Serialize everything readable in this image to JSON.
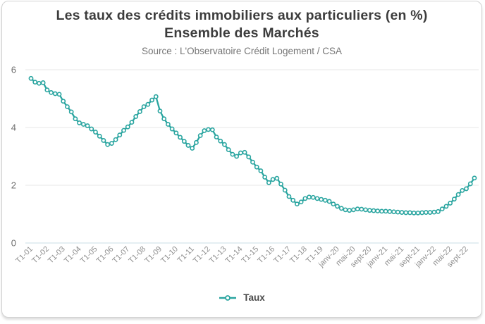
{
  "header": {
    "title_line1": "Les taux des crédits immobiliers aux particuliers (en %)",
    "title_line2": "Ensemble des Marchés",
    "source": "Source : L'Observatoire Crédit Logement / CSA"
  },
  "legend": {
    "label": "Taux"
  },
  "colors": {
    "line": "#2aa5a0",
    "marker_fill": "#ffffff",
    "grid": "#e7e7e7",
    "zero_line": "#c9dfe6",
    "ytick_text": "#6e6e6e",
    "xtick_text": "#8f8f8f"
  },
  "chart_data": {
    "type": "line",
    "title": "Les taux des crédits immobiliers aux particuliers (en %) Ensemble des Marchés",
    "subtitle": "Source : L'Observatoire Crédit Logement / CSA",
    "xlabel": "",
    "ylabel": "",
    "ylim": [
      0,
      6
    ],
    "yticks": [
      0,
      2,
      4,
      6
    ],
    "grid": "horizontal",
    "legend_position": "bottom",
    "x_tick_every": 4,
    "visible_x_tick_labels": [
      "T1-01",
      "T1-02",
      "T1-03",
      "T1-04",
      "T1-05",
      "T1-06",
      "T1-07",
      "T1-08",
      "T1-09",
      "T1-10",
      "T1-11",
      "T1-12",
      "T1-13",
      "T1-14",
      "T1-15",
      "T1-16",
      "T1-17",
      "T1-18",
      "T1-19",
      "janv-20",
      "mai-20",
      "sept-20",
      "janv-21",
      "mai-21",
      "sept-21",
      "janv-22",
      "mai-22",
      "sept-22"
    ],
    "categories": [
      "T1-01",
      "T2-01",
      "T3-01",
      "T4-01",
      "T1-02",
      "T2-02",
      "T3-02",
      "T4-02",
      "T1-03",
      "T2-03",
      "T3-03",
      "T4-03",
      "T1-04",
      "T2-04",
      "T3-04",
      "T4-04",
      "T1-05",
      "T2-05",
      "T3-05",
      "T4-05",
      "T1-06",
      "T2-06",
      "T3-06",
      "T4-06",
      "T1-07",
      "T2-07",
      "T3-07",
      "T4-07",
      "T1-08",
      "T2-08",
      "T3-08",
      "T4-08",
      "T1-09",
      "T2-09",
      "T3-09",
      "T4-09",
      "T1-10",
      "T2-10",
      "T3-10",
      "T4-10",
      "T1-11",
      "T2-11",
      "T3-11",
      "T4-11",
      "T1-12",
      "T2-12",
      "T3-12",
      "T4-12",
      "T1-13",
      "T2-13",
      "T3-13",
      "T4-13",
      "T1-14",
      "T2-14",
      "T3-14",
      "T4-14",
      "T1-15",
      "T2-15",
      "T3-15",
      "T4-15",
      "T1-16",
      "T2-16",
      "T3-16",
      "T4-16",
      "T1-17",
      "T2-17",
      "T3-17",
      "T4-17",
      "T1-18",
      "T2-18",
      "T3-18",
      "T4-18",
      "T1-19",
      "T2-19",
      "T3-19",
      "T4-19",
      "janv-20",
      "févr-20",
      "mars-20",
      "avr-20",
      "mai-20",
      "juin-20",
      "juil-20",
      "août-20",
      "sept-20",
      "oct-20",
      "nov-20",
      "déc-20",
      "janv-21",
      "févr-21",
      "mars-21",
      "avr-21",
      "mai-21",
      "juin-21",
      "juil-21",
      "août-21",
      "sept-21",
      "oct-21",
      "nov-21",
      "déc-21",
      "janv-22",
      "févr-22",
      "mars-22",
      "avr-22",
      "mai-22",
      "juin-22",
      "juil-22",
      "août-22",
      "sept-22",
      "oct-22",
      "nov-22"
    ],
    "series": [
      {
        "name": "Taux",
        "color": "#2aa5a0",
        "marker": "open-circle",
        "values": [
          5.7,
          5.57,
          5.53,
          5.55,
          5.3,
          5.21,
          5.17,
          5.15,
          4.91,
          4.72,
          4.54,
          4.3,
          4.16,
          4.11,
          4.06,
          3.95,
          3.84,
          3.7,
          3.55,
          3.41,
          3.45,
          3.58,
          3.74,
          3.9,
          4.02,
          4.18,
          4.38,
          4.55,
          4.72,
          4.8,
          4.95,
          5.07,
          4.57,
          4.3,
          4.11,
          3.95,
          3.81,
          3.66,
          3.52,
          3.38,
          3.28,
          3.48,
          3.72,
          3.89,
          3.93,
          3.92,
          3.67,
          3.53,
          3.41,
          3.23,
          3.07,
          3.0,
          3.12,
          3.14,
          2.98,
          2.8,
          2.63,
          2.5,
          2.28,
          2.09,
          2.2,
          2.24,
          2.04,
          1.83,
          1.61,
          1.48,
          1.35,
          1.42,
          1.54,
          1.59,
          1.58,
          1.54,
          1.51,
          1.48,
          1.44,
          1.35,
          1.27,
          1.2,
          1.15,
          1.13,
          1.15,
          1.18,
          1.17,
          1.15,
          1.13,
          1.12,
          1.11,
          1.1,
          1.1,
          1.09,
          1.08,
          1.07,
          1.06,
          1.05,
          1.05,
          1.04,
          1.04,
          1.05,
          1.06,
          1.06,
          1.07,
          1.09,
          1.18,
          1.27,
          1.38,
          1.52,
          1.68,
          1.82,
          1.88,
          2.05,
          2.25
        ]
      }
    ]
  }
}
